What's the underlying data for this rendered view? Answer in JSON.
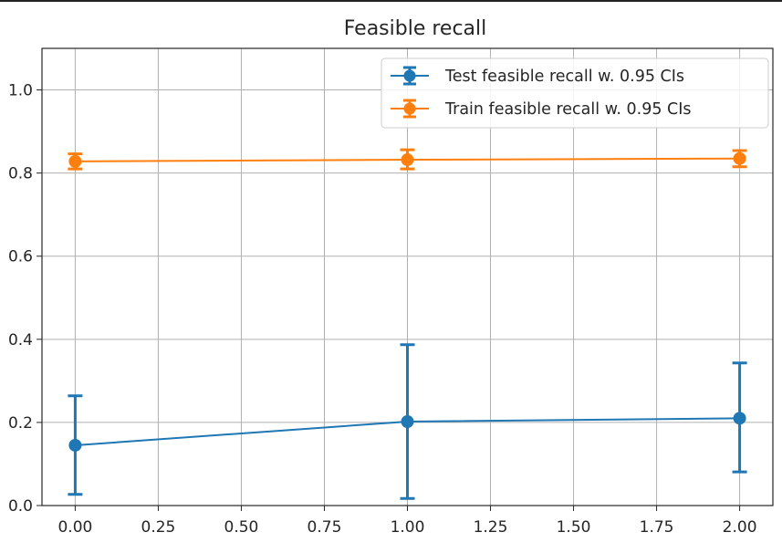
{
  "chart_data": {
    "type": "line",
    "title": "Feasible recall",
    "xlabel": "",
    "ylabel": "",
    "xlim": [
      -0.1,
      2.1
    ],
    "ylim": [
      0.0,
      1.1
    ],
    "xticks": [
      0.0,
      0.25,
      0.5,
      0.75,
      1.0,
      1.25,
      1.5,
      1.75,
      2.0
    ],
    "xtick_labels": [
      "0.00",
      "0.25",
      "0.50",
      "0.75",
      "1.00",
      "1.25",
      "1.50",
      "1.75",
      "2.00"
    ],
    "yticks": [
      0.0,
      0.2,
      0.4,
      0.6,
      0.8,
      1.0
    ],
    "ytick_labels": [
      "0.0",
      "0.2",
      "0.4",
      "0.6",
      "0.8",
      "1.0"
    ],
    "grid": true,
    "legend_position": "top-right",
    "series": [
      {
        "name": "Test feasible recall w. 0.95 CIs",
        "color": "#1f77b4",
        "x": [
          0,
          1,
          2
        ],
        "y": [
          0.145,
          0.202,
          0.21
        ],
        "err_low": [
          0.027,
          0.017,
          0.081
        ],
        "err_high": [
          0.264,
          0.387,
          0.343
        ]
      },
      {
        "name": "Train feasible recall w. 0.95 CIs",
        "color": "#ff7f0e",
        "x": [
          0,
          1,
          2
        ],
        "y": [
          0.828,
          0.832,
          0.835
        ],
        "err_low": [
          0.81,
          0.81,
          0.815
        ],
        "err_high": [
          0.846,
          0.856,
          0.854
        ]
      }
    ]
  }
}
